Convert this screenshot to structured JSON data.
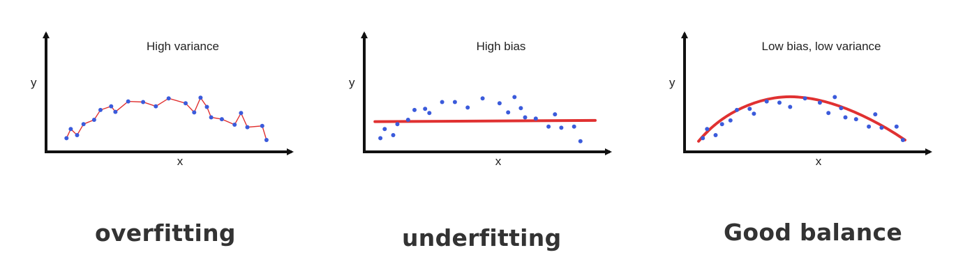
{
  "panels": [
    {
      "title": "High variance",
      "xlabel": "x",
      "ylabel": "y",
      "caption": "overfitting",
      "fit": "zigzag",
      "points": [
        [
          0.05,
          0.55
        ],
        [
          0.07,
          0.4
        ],
        [
          0.1,
          0.5
        ],
        [
          0.13,
          0.32
        ],
        [
          0.18,
          0.25
        ],
        [
          0.21,
          0.09
        ],
        [
          0.26,
          0.03
        ],
        [
          0.28,
          0.12
        ],
        [
          0.34,
          -0.05
        ],
        [
          0.41,
          -0.04
        ],
        [
          0.47,
          0.03
        ],
        [
          0.53,
          -0.1
        ],
        [
          0.61,
          -0.02
        ],
        [
          0.65,
          0.13
        ],
        [
          0.68,
          -0.11
        ],
        [
          0.71,
          0.04
        ],
        [
          0.73,
          0.21
        ],
        [
          0.78,
          0.24
        ],
        [
          0.84,
          0.33
        ],
        [
          0.87,
          0.14
        ],
        [
          0.9,
          0.37
        ],
        [
          0.97,
          0.35
        ],
        [
          0.99,
          0.58
        ]
      ]
    },
    {
      "title": "High bias",
      "xlabel": "x",
      "ylabel": "y",
      "caption": "underfitting",
      "fit": "line",
      "points": [
        [
          0.03,
          0.55
        ],
        [
          0.05,
          0.4
        ],
        [
          0.09,
          0.5
        ],
        [
          0.11,
          0.32
        ],
        [
          0.16,
          0.25
        ],
        [
          0.19,
          0.09
        ],
        [
          0.24,
          0.07
        ],
        [
          0.26,
          0.14
        ],
        [
          0.32,
          -0.04
        ],
        [
          0.38,
          -0.04
        ],
        [
          0.44,
          0.05
        ],
        [
          0.51,
          -0.1
        ],
        [
          0.59,
          -0.02
        ],
        [
          0.63,
          0.13
        ],
        [
          0.66,
          -0.12
        ],
        [
          0.69,
          0.06
        ],
        [
          0.71,
          0.21
        ],
        [
          0.76,
          0.23
        ],
        [
          0.82,
          0.36
        ],
        [
          0.85,
          0.16
        ],
        [
          0.88,
          0.38
        ],
        [
          0.94,
          0.36
        ],
        [
          0.97,
          0.6
        ]
      ],
      "line": [
        [
          0.05,
          0.28
        ],
        [
          1.0,
          0.26
        ]
      ]
    },
    {
      "title": "Low bias, low variance",
      "xlabel": "x",
      "ylabel": "y",
      "caption": "Good balance",
      "fit": "curve",
      "points": [
        [
          0.04,
          0.55
        ],
        [
          0.06,
          0.4
        ],
        [
          0.1,
          0.5
        ],
        [
          0.13,
          0.32
        ],
        [
          0.17,
          0.26
        ],
        [
          0.2,
          0.09
        ],
        [
          0.26,
          0.07
        ],
        [
          0.28,
          0.15
        ],
        [
          0.34,
          -0.05
        ],
        [
          0.4,
          -0.03
        ],
        [
          0.45,
          0.04
        ],
        [
          0.52,
          -0.1
        ],
        [
          0.59,
          -0.03
        ],
        [
          0.63,
          0.14
        ],
        [
          0.66,
          -0.12
        ],
        [
          0.69,
          0.06
        ],
        [
          0.71,
          0.21
        ],
        [
          0.76,
          0.24
        ],
        [
          0.82,
          0.36
        ],
        [
          0.85,
          0.16
        ],
        [
          0.88,
          0.38
        ],
        [
          0.95,
          0.36
        ],
        [
          0.98,
          0.58
        ]
      ]
    }
  ],
  "colors": {
    "point": "#3b5bdb",
    "thin_fit": "#e03131",
    "thick_fit": "#e03131",
    "axis": "#111111"
  }
}
